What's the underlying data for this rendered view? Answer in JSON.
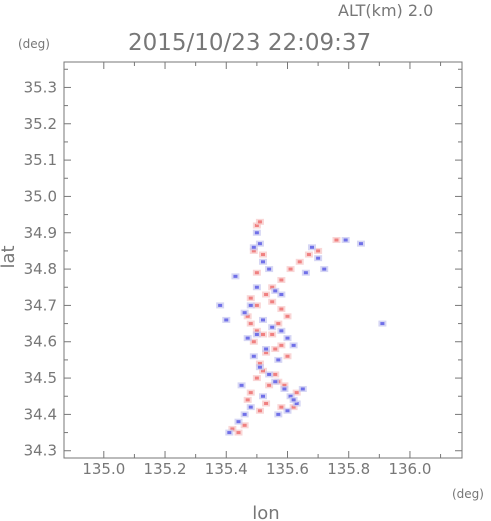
{
  "header": {
    "altitude": "ALT(km) 2.0",
    "timestamp": "2015/10/23 22:09:37"
  },
  "chart_data": {
    "type": "scatter",
    "title": "2015/10/23 22:09:37",
    "xlabel": "lon",
    "ylabel": "lat",
    "x_unit": "(deg)",
    "y_unit": "(deg)",
    "xlim": [
      134.87,
      136.17
    ],
    "ylim": [
      34.28,
      35.37
    ],
    "x_ticks": [
      "135.0",
      "135.2",
      "135.4",
      "135.6",
      "135.8",
      "136.0"
    ],
    "y_ticks": [
      "34.3",
      "34.4",
      "34.5",
      "34.6",
      "34.7",
      "34.8",
      "34.9",
      "35.0",
      "35.1",
      "35.2",
      "35.3"
    ],
    "grid": false,
    "colors": {
      "positive": "#f08080",
      "negative": "#7070e8",
      "light_positive": "#f7c8c8",
      "light_negative": "#c8c8f0",
      "frame": "#777777"
    },
    "series": [
      {
        "x": [
          135.5,
          135.51,
          135.49,
          135.52,
          135.5,
          135.53,
          135.55,
          135.58,
          135.6,
          135.57,
          135.47,
          135.48,
          135.5,
          135.52,
          135.49,
          135.55,
          135.56,
          135.53,
          135.58,
          135.6,
          135.51,
          135.52,
          135.5,
          135.54,
          135.48,
          135.56,
          135.47,
          135.57,
          135.59,
          135.53,
          135.51,
          135.58,
          135.62,
          135.63,
          135.67,
          135.61,
          135.55,
          135.5,
          135.48,
          135.42,
          135.44,
          135.46,
          135.58,
          135.64,
          135.7,
          135.76
        ],
        "y": [
          34.92,
          34.93,
          34.85,
          34.84,
          34.79,
          34.73,
          34.71,
          34.69,
          34.67,
          34.65,
          34.67,
          34.65,
          34.63,
          34.62,
          34.6,
          34.62,
          34.58,
          34.57,
          34.59,
          34.56,
          34.54,
          34.52,
          34.5,
          34.48,
          34.46,
          34.51,
          34.44,
          34.49,
          34.48,
          34.43,
          34.41,
          34.42,
          34.42,
          34.46,
          34.84,
          34.8,
          34.75,
          34.7,
          34.72,
          34.36,
          34.35,
          34.37,
          34.77,
          34.82,
          34.85,
          34.88
        ]
      },
      {
        "x": [
          135.5,
          135.51,
          135.49,
          135.52,
          135.54,
          135.56,
          135.48,
          135.46,
          135.52,
          135.55,
          135.58,
          135.6,
          135.62,
          135.5,
          135.47,
          135.53,
          135.57,
          135.49,
          135.51,
          135.54,
          135.56,
          135.59,
          135.61,
          135.63,
          135.52,
          135.48,
          135.46,
          135.44,
          135.41,
          135.57,
          135.6,
          135.62,
          135.65,
          135.68,
          135.7,
          135.72,
          135.79,
          135.84,
          135.91,
          135.38,
          135.43,
          135.5,
          135.58,
          135.66,
          135.45,
          135.4
        ],
        "y": [
          34.9,
          34.87,
          34.86,
          34.82,
          34.8,
          34.74,
          34.7,
          34.68,
          34.66,
          34.64,
          34.63,
          34.61,
          34.59,
          34.62,
          34.61,
          34.58,
          34.55,
          34.56,
          34.53,
          34.51,
          34.49,
          34.47,
          34.45,
          34.43,
          34.45,
          34.42,
          34.4,
          34.38,
          34.35,
          34.4,
          34.41,
          34.44,
          34.47,
          34.86,
          34.83,
          34.8,
          34.88,
          34.87,
          34.65,
          34.7,
          34.78,
          34.75,
          34.73,
          34.79,
          34.48,
          34.66
        ]
      }
    ]
  }
}
